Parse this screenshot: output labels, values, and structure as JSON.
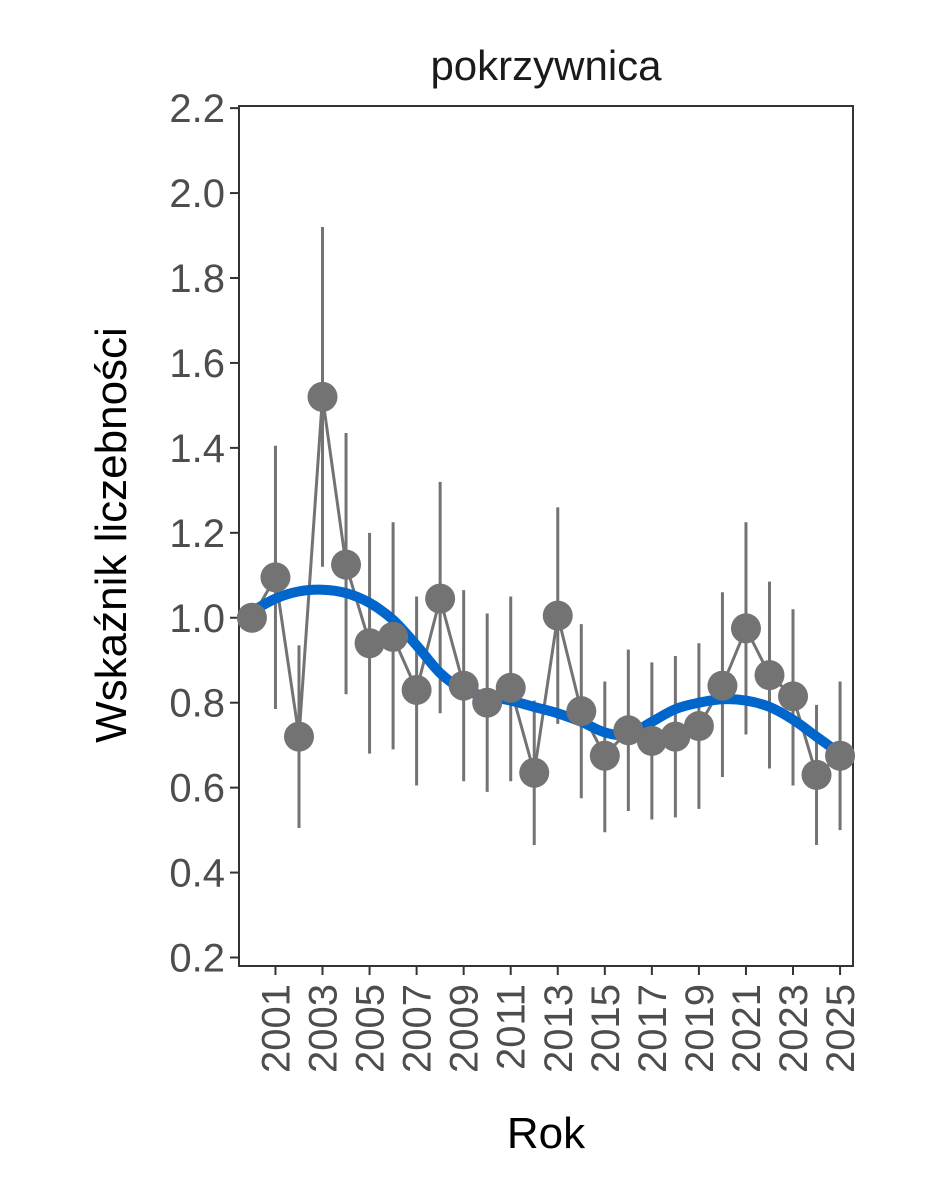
{
  "chart_data": {
    "type": "line",
    "title": "pokrzywnica",
    "xlabel": "Rok",
    "ylabel": "Wskaźnik liczebności",
    "xlim": [
      2000,
      2025
    ],
    "ylim": [
      0.2,
      2.2
    ],
    "x_ticks": [
      2001,
      2003,
      2005,
      2007,
      2009,
      2011,
      2013,
      2015,
      2017,
      2019,
      2021,
      2023,
      2025
    ],
    "x_tick_labels": [
      "2001",
      "2003",
      "2005",
      "2007",
      "2009",
      "2011",
      "2013",
      "2015",
      "2017",
      "2019",
      "2021",
      "2023",
      "2025"
    ],
    "y_ticks": [
      0.2,
      0.4,
      0.6,
      0.8,
      1.0,
      1.2,
      1.4,
      1.6,
      1.8,
      2.0,
      2.2
    ],
    "y_tick_labels": [
      "0.2",
      "0.4",
      "0.6",
      "0.8",
      "1.0",
      "1.2",
      "1.4",
      "1.6",
      "1.8",
      "2.0",
      "2.2"
    ],
    "grid": false,
    "legend": "none",
    "series": [
      {
        "name": "index",
        "color": "#737373",
        "points": [
          {
            "x": 2000,
            "y": 1.0,
            "lo": null,
            "hi": null
          },
          {
            "x": 2001,
            "y": 1.095,
            "lo": 0.785,
            "hi": 1.405
          },
          {
            "x": 2002,
            "y": 0.72,
            "lo": 0.505,
            "hi": 0.935
          },
          {
            "x": 2003,
            "y": 1.52,
            "lo": 1.12,
            "hi": 1.92
          },
          {
            "x": 2004,
            "y": 1.125,
            "lo": 0.82,
            "hi": 1.435
          },
          {
            "x": 2005,
            "y": 0.94,
            "lo": 0.68,
            "hi": 1.2
          },
          {
            "x": 2006,
            "y": 0.955,
            "lo": 0.69,
            "hi": 1.225
          },
          {
            "x": 2007,
            "y": 0.83,
            "lo": 0.605,
            "hi": 1.05
          },
          {
            "x": 2008,
            "y": 1.045,
            "lo": 0.775,
            "hi": 1.32
          },
          {
            "x": 2009,
            "y": 0.84,
            "lo": 0.615,
            "hi": 1.065
          },
          {
            "x": 2010,
            "y": 0.8,
            "lo": 0.59,
            "hi": 1.01
          },
          {
            "x": 2011,
            "y": 0.835,
            "lo": 0.615,
            "hi": 1.05
          },
          {
            "x": 2012,
            "y": 0.635,
            "lo": 0.465,
            "hi": 0.805
          },
          {
            "x": 2013,
            "y": 1.005,
            "lo": 0.75,
            "hi": 1.26
          },
          {
            "x": 2014,
            "y": 0.78,
            "lo": 0.575,
            "hi": 0.985
          },
          {
            "x": 2015,
            "y": 0.675,
            "lo": 0.495,
            "hi": 0.85
          },
          {
            "x": 2016,
            "y": 0.735,
            "lo": 0.545,
            "hi": 0.925
          },
          {
            "x": 2017,
            "y": 0.71,
            "lo": 0.525,
            "hi": 0.895
          },
          {
            "x": 2018,
            "y": 0.72,
            "lo": 0.53,
            "hi": 0.91
          },
          {
            "x": 2019,
            "y": 0.745,
            "lo": 0.55,
            "hi": 0.94
          },
          {
            "x": 2020,
            "y": 0.84,
            "lo": 0.625,
            "hi": 1.06
          },
          {
            "x": 2021,
            "y": 0.975,
            "lo": 0.725,
            "hi": 1.225
          },
          {
            "x": 2022,
            "y": 0.865,
            "lo": 0.645,
            "hi": 1.085
          },
          {
            "x": 2023,
            "y": 0.815,
            "lo": 0.605,
            "hi": 1.02
          },
          {
            "x": 2024,
            "y": 0.63,
            "lo": 0.465,
            "hi": 0.795
          },
          {
            "x": 2025,
            "y": 0.675,
            "lo": 0.5,
            "hi": 0.85
          }
        ]
      },
      {
        "name": "trend",
        "color": "#0066cc",
        "x": [
          2000,
          2001,
          2002,
          2003,
          2004,
          2005,
          2006,
          2007,
          2008,
          2009,
          2010,
          2011,
          2012,
          2013,
          2014,
          2015,
          2016,
          2017,
          2018,
          2019,
          2020,
          2021,
          2022,
          2023,
          2024,
          2025
        ],
        "values": [
          1.015,
          1.045,
          1.062,
          1.066,
          1.058,
          1.035,
          0.995,
          0.935,
          0.87,
          0.83,
          0.815,
          0.805,
          0.79,
          0.775,
          0.755,
          0.73,
          0.725,
          0.755,
          0.785,
          0.8,
          0.808,
          0.805,
          0.79,
          0.76,
          0.72,
          0.68
        ]
      }
    ]
  }
}
